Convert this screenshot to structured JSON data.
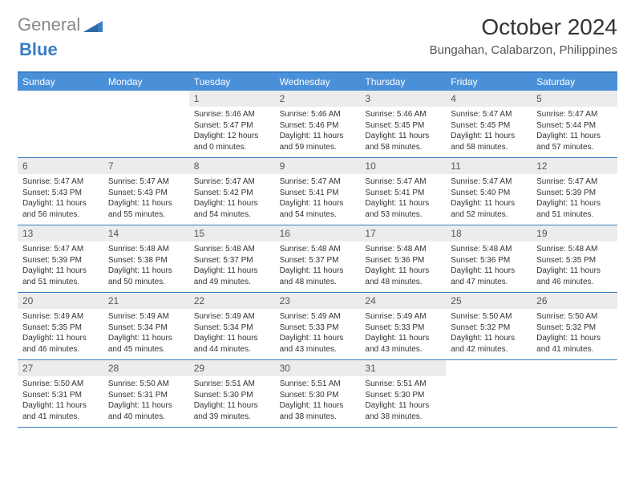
{
  "logo": {
    "part1": "General",
    "part2": "Blue"
  },
  "title": "October 2024",
  "location": "Bungahan, Calabarzon, Philippines",
  "colors": {
    "header_bar": "#4a90d9",
    "border": "#3a7dc4",
    "daynum_bg": "#ececec",
    "text": "#333333",
    "logo_gray": "#888888",
    "logo_blue": "#3a7dc4"
  },
  "days_of_week": [
    "Sunday",
    "Monday",
    "Tuesday",
    "Wednesday",
    "Thursday",
    "Friday",
    "Saturday"
  ],
  "weeks": [
    [
      {
        "n": "",
        "sr": "",
        "ss": "",
        "dl": ""
      },
      {
        "n": "",
        "sr": "",
        "ss": "",
        "dl": ""
      },
      {
        "n": "1",
        "sr": "5:46 AM",
        "ss": "5:47 PM",
        "dl": "12 hours and 0 minutes."
      },
      {
        "n": "2",
        "sr": "5:46 AM",
        "ss": "5:46 PM",
        "dl": "11 hours and 59 minutes."
      },
      {
        "n": "3",
        "sr": "5:46 AM",
        "ss": "5:45 PM",
        "dl": "11 hours and 58 minutes."
      },
      {
        "n": "4",
        "sr": "5:47 AM",
        "ss": "5:45 PM",
        "dl": "11 hours and 58 minutes."
      },
      {
        "n": "5",
        "sr": "5:47 AM",
        "ss": "5:44 PM",
        "dl": "11 hours and 57 minutes."
      }
    ],
    [
      {
        "n": "6",
        "sr": "5:47 AM",
        "ss": "5:43 PM",
        "dl": "11 hours and 56 minutes."
      },
      {
        "n": "7",
        "sr": "5:47 AM",
        "ss": "5:43 PM",
        "dl": "11 hours and 55 minutes."
      },
      {
        "n": "8",
        "sr": "5:47 AM",
        "ss": "5:42 PM",
        "dl": "11 hours and 54 minutes."
      },
      {
        "n": "9",
        "sr": "5:47 AM",
        "ss": "5:41 PM",
        "dl": "11 hours and 54 minutes."
      },
      {
        "n": "10",
        "sr": "5:47 AM",
        "ss": "5:41 PM",
        "dl": "11 hours and 53 minutes."
      },
      {
        "n": "11",
        "sr": "5:47 AM",
        "ss": "5:40 PM",
        "dl": "11 hours and 52 minutes."
      },
      {
        "n": "12",
        "sr": "5:47 AM",
        "ss": "5:39 PM",
        "dl": "11 hours and 51 minutes."
      }
    ],
    [
      {
        "n": "13",
        "sr": "5:47 AM",
        "ss": "5:39 PM",
        "dl": "11 hours and 51 minutes."
      },
      {
        "n": "14",
        "sr": "5:48 AM",
        "ss": "5:38 PM",
        "dl": "11 hours and 50 minutes."
      },
      {
        "n": "15",
        "sr": "5:48 AM",
        "ss": "5:37 PM",
        "dl": "11 hours and 49 minutes."
      },
      {
        "n": "16",
        "sr": "5:48 AM",
        "ss": "5:37 PM",
        "dl": "11 hours and 48 minutes."
      },
      {
        "n": "17",
        "sr": "5:48 AM",
        "ss": "5:36 PM",
        "dl": "11 hours and 48 minutes."
      },
      {
        "n": "18",
        "sr": "5:48 AM",
        "ss": "5:36 PM",
        "dl": "11 hours and 47 minutes."
      },
      {
        "n": "19",
        "sr": "5:48 AM",
        "ss": "5:35 PM",
        "dl": "11 hours and 46 minutes."
      }
    ],
    [
      {
        "n": "20",
        "sr": "5:49 AM",
        "ss": "5:35 PM",
        "dl": "11 hours and 46 minutes."
      },
      {
        "n": "21",
        "sr": "5:49 AM",
        "ss": "5:34 PM",
        "dl": "11 hours and 45 minutes."
      },
      {
        "n": "22",
        "sr": "5:49 AM",
        "ss": "5:34 PM",
        "dl": "11 hours and 44 minutes."
      },
      {
        "n": "23",
        "sr": "5:49 AM",
        "ss": "5:33 PM",
        "dl": "11 hours and 43 minutes."
      },
      {
        "n": "24",
        "sr": "5:49 AM",
        "ss": "5:33 PM",
        "dl": "11 hours and 43 minutes."
      },
      {
        "n": "25",
        "sr": "5:50 AM",
        "ss": "5:32 PM",
        "dl": "11 hours and 42 minutes."
      },
      {
        "n": "26",
        "sr": "5:50 AM",
        "ss": "5:32 PM",
        "dl": "11 hours and 41 minutes."
      }
    ],
    [
      {
        "n": "27",
        "sr": "5:50 AM",
        "ss": "5:31 PM",
        "dl": "11 hours and 41 minutes."
      },
      {
        "n": "28",
        "sr": "5:50 AM",
        "ss": "5:31 PM",
        "dl": "11 hours and 40 minutes."
      },
      {
        "n": "29",
        "sr": "5:51 AM",
        "ss": "5:30 PM",
        "dl": "11 hours and 39 minutes."
      },
      {
        "n": "30",
        "sr": "5:51 AM",
        "ss": "5:30 PM",
        "dl": "11 hours and 38 minutes."
      },
      {
        "n": "31",
        "sr": "5:51 AM",
        "ss": "5:30 PM",
        "dl": "11 hours and 38 minutes."
      },
      {
        "n": "",
        "sr": "",
        "ss": "",
        "dl": ""
      },
      {
        "n": "",
        "sr": "",
        "ss": "",
        "dl": ""
      }
    ]
  ],
  "labels": {
    "sunrise": "Sunrise:",
    "sunset": "Sunset:",
    "daylight": "Daylight:"
  }
}
